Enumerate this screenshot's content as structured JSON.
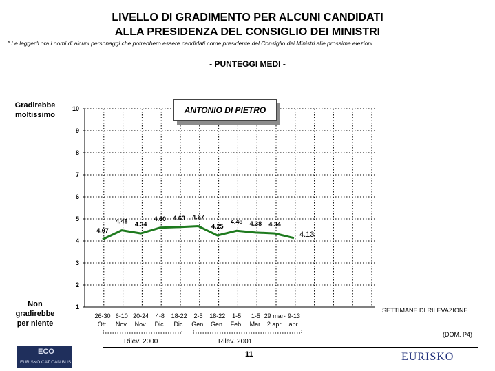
{
  "header": {
    "title_line1": "LIVELLO DI GRADIMENTO PER ALCUNI CANDIDATI",
    "title_line2": "ALLA PRESIDENZA DEL CONSIGLIO DEI MINISTRI",
    "note": "\" Le leggerò ora i nomi di alcuni personaggi che potrebbero essere candidati come presidente del Consiglio dei Ministri alle prossime elezioni.",
    "subtitle": "- PUNTEGGI MEDI -"
  },
  "axis_labels": {
    "top": [
      "Gradirebbe",
      "moltissimo"
    ],
    "bottom": [
      "Non gradirebbe",
      "per niente"
    ]
  },
  "legend": {
    "series_name": "ANTONIO DI PIETRO"
  },
  "footer": {
    "weeks_label": "SETTIMANE DI RILEVAZIONE",
    "dom": "(DOM. P4)",
    "period_2000": "Rilev. 2000",
    "period_2001": "Rilev. 2001",
    "page_number": "11",
    "logo_left_big": "ECO",
    "logo_left_small": "EURISKO CAT CAN BUS",
    "logo_right": "EURISKO"
  },
  "chart_data": {
    "type": "line",
    "title": "LIVELLO DI GRADIMENTO PER ALCUNI CANDIDATI ALLA PRESIDENZA DEL CONSIGLIO DEI MINISTRI",
    "ylim": [
      1,
      10
    ],
    "yticks": [
      1,
      2,
      3,
      4,
      5,
      6,
      7,
      8,
      9,
      10
    ],
    "grid": true,
    "categories": [
      [
        "26-30",
        "Ott."
      ],
      [
        "6-10",
        "Nov."
      ],
      [
        "20-24",
        "Nov."
      ],
      [
        "4-8",
        "Dic."
      ],
      [
        "18-22",
        "Dic."
      ],
      [
        "2-5",
        "Gen."
      ],
      [
        "18-22",
        "Gen."
      ],
      [
        "1-5",
        "Feb."
      ],
      [
        "1-5",
        "Mar."
      ],
      [
        "29 mar-",
        "2 apr."
      ],
      [
        "9-13",
        "apr."
      ]
    ],
    "series": [
      {
        "name": "ANTONIO DI PIETRO",
        "color": "#1e7a1e",
        "values": [
          4.07,
          4.48,
          4.34,
          4.6,
          4.63,
          4.67,
          4.25,
          4.46,
          4.38,
          4.34,
          4.13
        ],
        "labels": [
          "4.07",
          "4.48",
          "4.34",
          "4.60",
          "4.63",
          "4.67",
          "4.25",
          "4.46",
          "4.38",
          "4.34",
          "4.13"
        ]
      }
    ]
  }
}
